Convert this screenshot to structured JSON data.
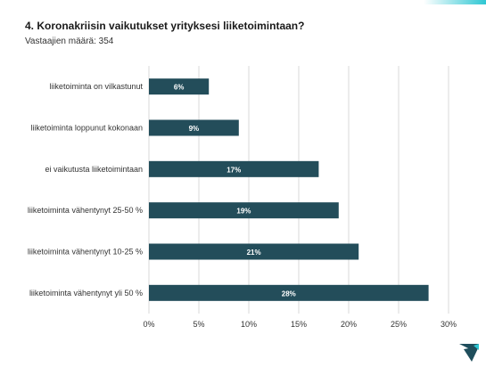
{
  "header": {
    "title": "4. Koronakriisin vaikutukset yrityksesi liiketoimintaan?",
    "respondents": "Vastaajien määrä: 354"
  },
  "colors": {
    "bar": "#234d5a",
    "grid": "#d9d9d9",
    "accent": "#2ec7d3",
    "logo": "#1f4e5c"
  },
  "chart_data": {
    "type": "bar",
    "orientation": "horizontal",
    "categories": [
      "liiketoiminta on vilkastunut",
      "liiketoiminta loppunut kokonaan",
      "ei vaikutusta liiketoimintaan",
      "liiketoiminta vähentynyt 25-50 %",
      "liiketoiminta vähentynyt 10-25 %",
      "liiketoiminta vähentynyt yli 50 %"
    ],
    "values": [
      6,
      9,
      17,
      19,
      21,
      28
    ],
    "value_labels": [
      "6%",
      "9%",
      "17%",
      "19%",
      "21%",
      "28%"
    ],
    "xlim": [
      0,
      30
    ],
    "xticks": [
      0,
      5,
      10,
      15,
      20,
      25,
      30
    ],
    "xtick_labels": [
      "0%",
      "5%",
      "10%",
      "15%",
      "20%",
      "25%",
      "30%"
    ],
    "grid": true
  }
}
